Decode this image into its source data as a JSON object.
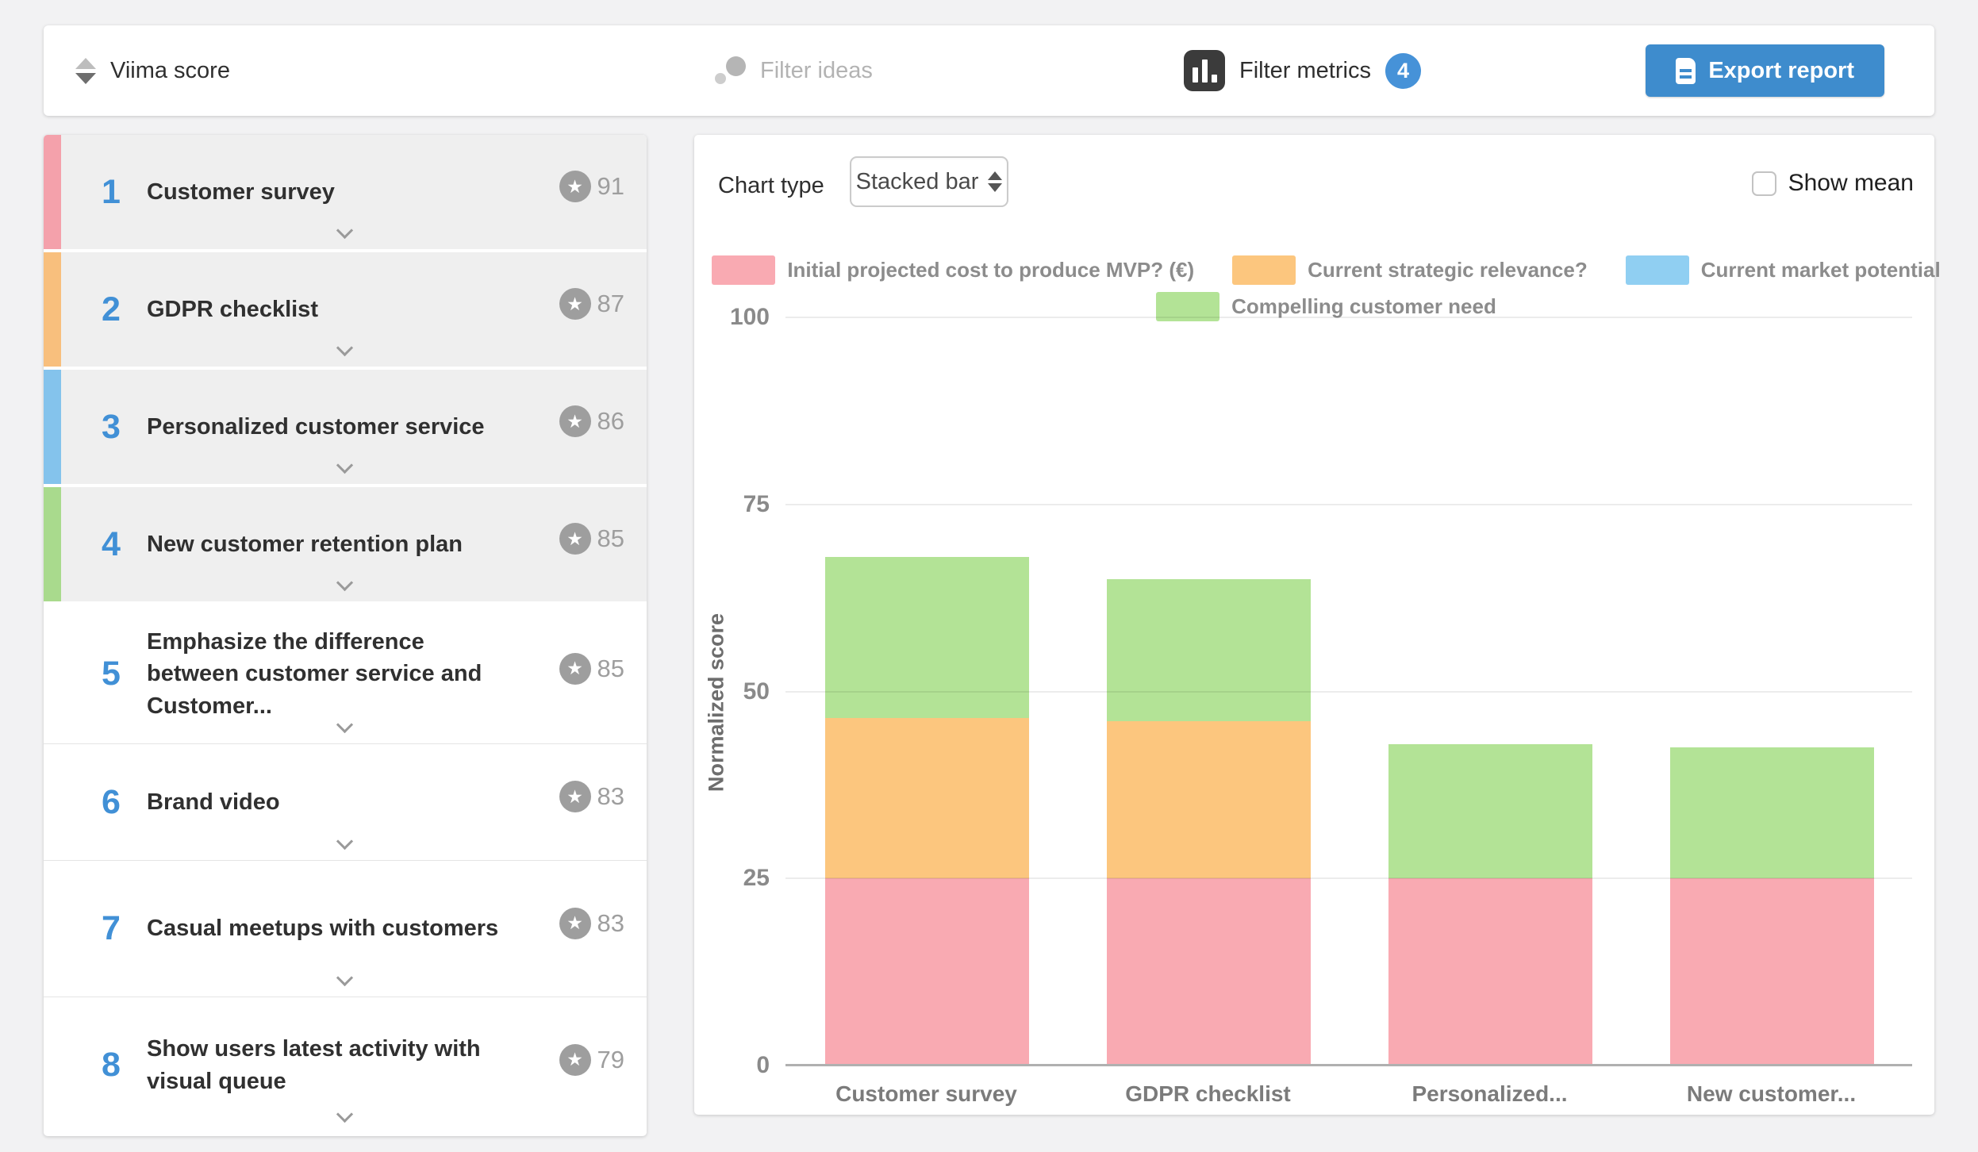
{
  "topbar": {
    "sort_label": "Viima score",
    "filter_ideas_label": "Filter ideas",
    "filter_metrics_label": "Filter metrics",
    "filter_metrics_badge": "4",
    "export_label": "Export report"
  },
  "idea_list": {
    "items": [
      {
        "rank": "1",
        "title": "Customer survey",
        "score": "91",
        "strip_color": "#f4a1ab",
        "highlighted": true
      },
      {
        "rank": "2",
        "title": "GDPR checklist",
        "score": "87",
        "strip_color": "#f8bf7d",
        "highlighted": true
      },
      {
        "rank": "3",
        "title": "Personalized customer service",
        "score": "86",
        "strip_color": "#84c3ec",
        "highlighted": true
      },
      {
        "rank": "4",
        "title": "New customer retention plan",
        "score": "85",
        "strip_color": "#a9da8d",
        "highlighted": true
      },
      {
        "rank": "5",
        "title": "Emphasize the difference between customer service and Customer...",
        "score": "85",
        "strip_color": null,
        "highlighted": false
      },
      {
        "rank": "6",
        "title": "Brand video",
        "score": "83",
        "strip_color": null,
        "highlighted": false
      },
      {
        "rank": "7",
        "title": "Casual meetups with customers",
        "score": "83",
        "strip_color": null,
        "highlighted": false
      },
      {
        "rank": "8",
        "title": "Show users latest activity with visual queue",
        "score": "79",
        "strip_color": null,
        "highlighted": false
      }
    ],
    "star_glyph": "★"
  },
  "chart_panel": {
    "chart_type_label": "Chart type",
    "chart_type_value": "Stacked bar",
    "show_mean_label": "Show mean",
    "show_mean_checked": false
  },
  "chart_data": {
    "type": "bar",
    "stacked": true,
    "ylabel": "Normalized score",
    "ylim": [
      0,
      100
    ],
    "yticks": [
      0,
      25,
      50,
      75,
      100
    ],
    "grid": true,
    "legend_position": "top",
    "categories": [
      "Customer survey",
      "GDPR checklist",
      "Personalized...",
      "New customer..."
    ],
    "series": [
      {
        "name": "Initial projected cost to produce MVP? (€)",
        "color": "#f9aab2",
        "values": [
          25,
          25,
          25,
          25
        ]
      },
      {
        "name": "Current strategic relevance?",
        "color": "#fcc67e",
        "values": [
          21.5,
          21,
          0,
          0
        ]
      },
      {
        "name": "Current market potential",
        "color": "#90cff2",
        "values": [
          0,
          0,
          0,
          0
        ]
      },
      {
        "name": "Compelling customer need",
        "color": "#b3e396",
        "values": [
          21.5,
          19,
          18,
          17.5
        ]
      }
    ],
    "legend_rows": [
      [
        0,
        1,
        2
      ],
      [
        3
      ]
    ]
  }
}
